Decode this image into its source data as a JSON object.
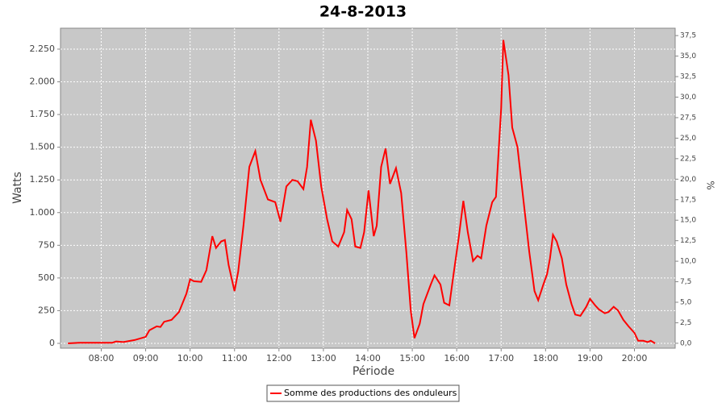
{
  "chart_data": {
    "type": "line",
    "title": "24-8-2013",
    "x_label": "Période",
    "y_label": "Watts",
    "y2_label": "%",
    "x": [
      "07:15",
      "07:30",
      "08:00",
      "08:15",
      "08:20",
      "08:30",
      "08:45",
      "09:00",
      "09:05",
      "09:15",
      "09:20",
      "09:25",
      "09:35",
      "09:45",
      "09:55",
      "10:00",
      "10:05",
      "10:15",
      "10:22",
      "10:30",
      "10:35",
      "10:42",
      "10:47",
      "10:52",
      "11:00",
      "11:05",
      "11:12",
      "11:20",
      "11:28",
      "11:35",
      "11:45",
      "11:55",
      "12:02",
      "12:10",
      "12:18",
      "12:25",
      "12:33",
      "12:38",
      "12:43",
      "12:50",
      "12:57",
      "13:05",
      "13:12",
      "13:20",
      "13:28",
      "13:32",
      "13:38",
      "13:43",
      "13:50",
      "13:55",
      "14:01",
      "14:08",
      "14:12",
      "14:18",
      "14:24",
      "14:30",
      "14:38",
      "14:45",
      "14:52",
      "14:58",
      "15:03",
      "15:10",
      "15:15",
      "15:25",
      "15:30",
      "15:38",
      "15:43",
      "15:50",
      "15:55",
      "16:03",
      "16:09",
      "16:15",
      "16:22",
      "16:28",
      "16:33",
      "16:40",
      "16:48",
      "16:53",
      "17:00",
      "17:03",
      "17:10",
      "17:15",
      "17:22",
      "17:30",
      "17:38",
      "17:45",
      "17:50",
      "17:57",
      "18:02",
      "18:06",
      "18:10",
      "18:15",
      "18:22",
      "18:28",
      "18:35",
      "18:40",
      "18:47",
      "18:55",
      "19:00",
      "19:07",
      "19:12",
      "19:20",
      "19:25",
      "19:32",
      "19:38",
      "19:45",
      "19:52",
      "20:00",
      "20:05",
      "20:12",
      "20:18",
      "20:22",
      "20:28"
    ],
    "series": [
      {
        "name": "Somme des productions des onduleurs",
        "color": "#ff0000",
        "values": [
          0,
          5,
          5,
          5,
          15,
          10,
          25,
          50,
          100,
          130,
          125,
          165,
          180,
          240,
          380,
          490,
          475,
          470,
          560,
          820,
          730,
          780,
          790,
          600,
          400,
          550,
          900,
          1350,
          1470,
          1250,
          1100,
          1080,
          930,
          1200,
          1250,
          1240,
          1180,
          1350,
          1710,
          1550,
          1200,
          950,
          780,
          740,
          850,
          1020,
          950,
          740,
          730,
          850,
          1170,
          820,
          900,
          1350,
          1490,
          1220,
          1340,
          1150,
          700,
          250,
          40,
          150,
          300,
          450,
          520,
          450,
          310,
          290,
          500,
          820,
          1090,
          850,
          630,
          670,
          650,
          900,
          1080,
          1120,
          1800,
          2320,
          2050,
          1650,
          1500,
          1100,
          700,
          400,
          330,
          450,
          530,
          650,
          830,
          780,
          650,
          450,
          300,
          220,
          210,
          280,
          340,
          290,
          260,
          230,
          240,
          280,
          250,
          180,
          130,
          80,
          20,
          20,
          10,
          20,
          0
        ]
      }
    ],
    "xlim": [
      "07:05",
      "20:55"
    ],
    "xticks": [
      "08:00",
      "09:00",
      "10:00",
      "11:00",
      "12:00",
      "13:00",
      "14:00",
      "15:00",
      "16:00",
      "17:00",
      "18:00",
      "19:00",
      "20:00"
    ],
    "ylim": [
      -37,
      2410
    ],
    "yticks": [
      0,
      {
        "value": 250,
        "label": "250"
      },
      {
        "value": 500,
        "label": "500"
      },
      {
        "value": 750,
        "label": "750"
      },
      {
        "value": 1000,
        "label": "1.000"
      },
      {
        "value": 1250,
        "label": "1.250"
      },
      {
        "value": 1500,
        "label": "1.500"
      },
      {
        "value": 1750,
        "label": "1.750"
      },
      {
        "value": 2000,
        "label": "2.000"
      },
      {
        "value": 2250,
        "label": "2.250"
      }
    ],
    "y2lim": [
      -0.6,
      38.4
    ],
    "y2ticks": [
      {
        "value": 0,
        "label": "0,0"
      },
      {
        "value": 2.5,
        "label": "2,5"
      },
      {
        "value": 5,
        "label": "5,0"
      },
      {
        "value": 7.5,
        "label": "7,5"
      },
      {
        "value": 10,
        "label": "10,0"
      },
      {
        "value": 12.5,
        "label": "12,5"
      },
      {
        "value": 15,
        "label": "15,0"
      },
      {
        "value": 17.5,
        "label": "17,5"
      },
      {
        "value": 20,
        "label": "20,0"
      },
      {
        "value": 22.5,
        "label": "22,5"
      },
      {
        "value": 25,
        "label": "25,0"
      },
      {
        "value": 27.5,
        "label": "27,5"
      },
      {
        "value": 30,
        "label": "30,0"
      },
      {
        "value": 32.5,
        "label": "32,5"
      },
      {
        "value": 35,
        "label": "35,0"
      },
      {
        "value": 37.5,
        "label": "37,5"
      }
    ],
    "grid": true,
    "plot_background": "#c8c8c8",
    "legend": "bottom"
  }
}
